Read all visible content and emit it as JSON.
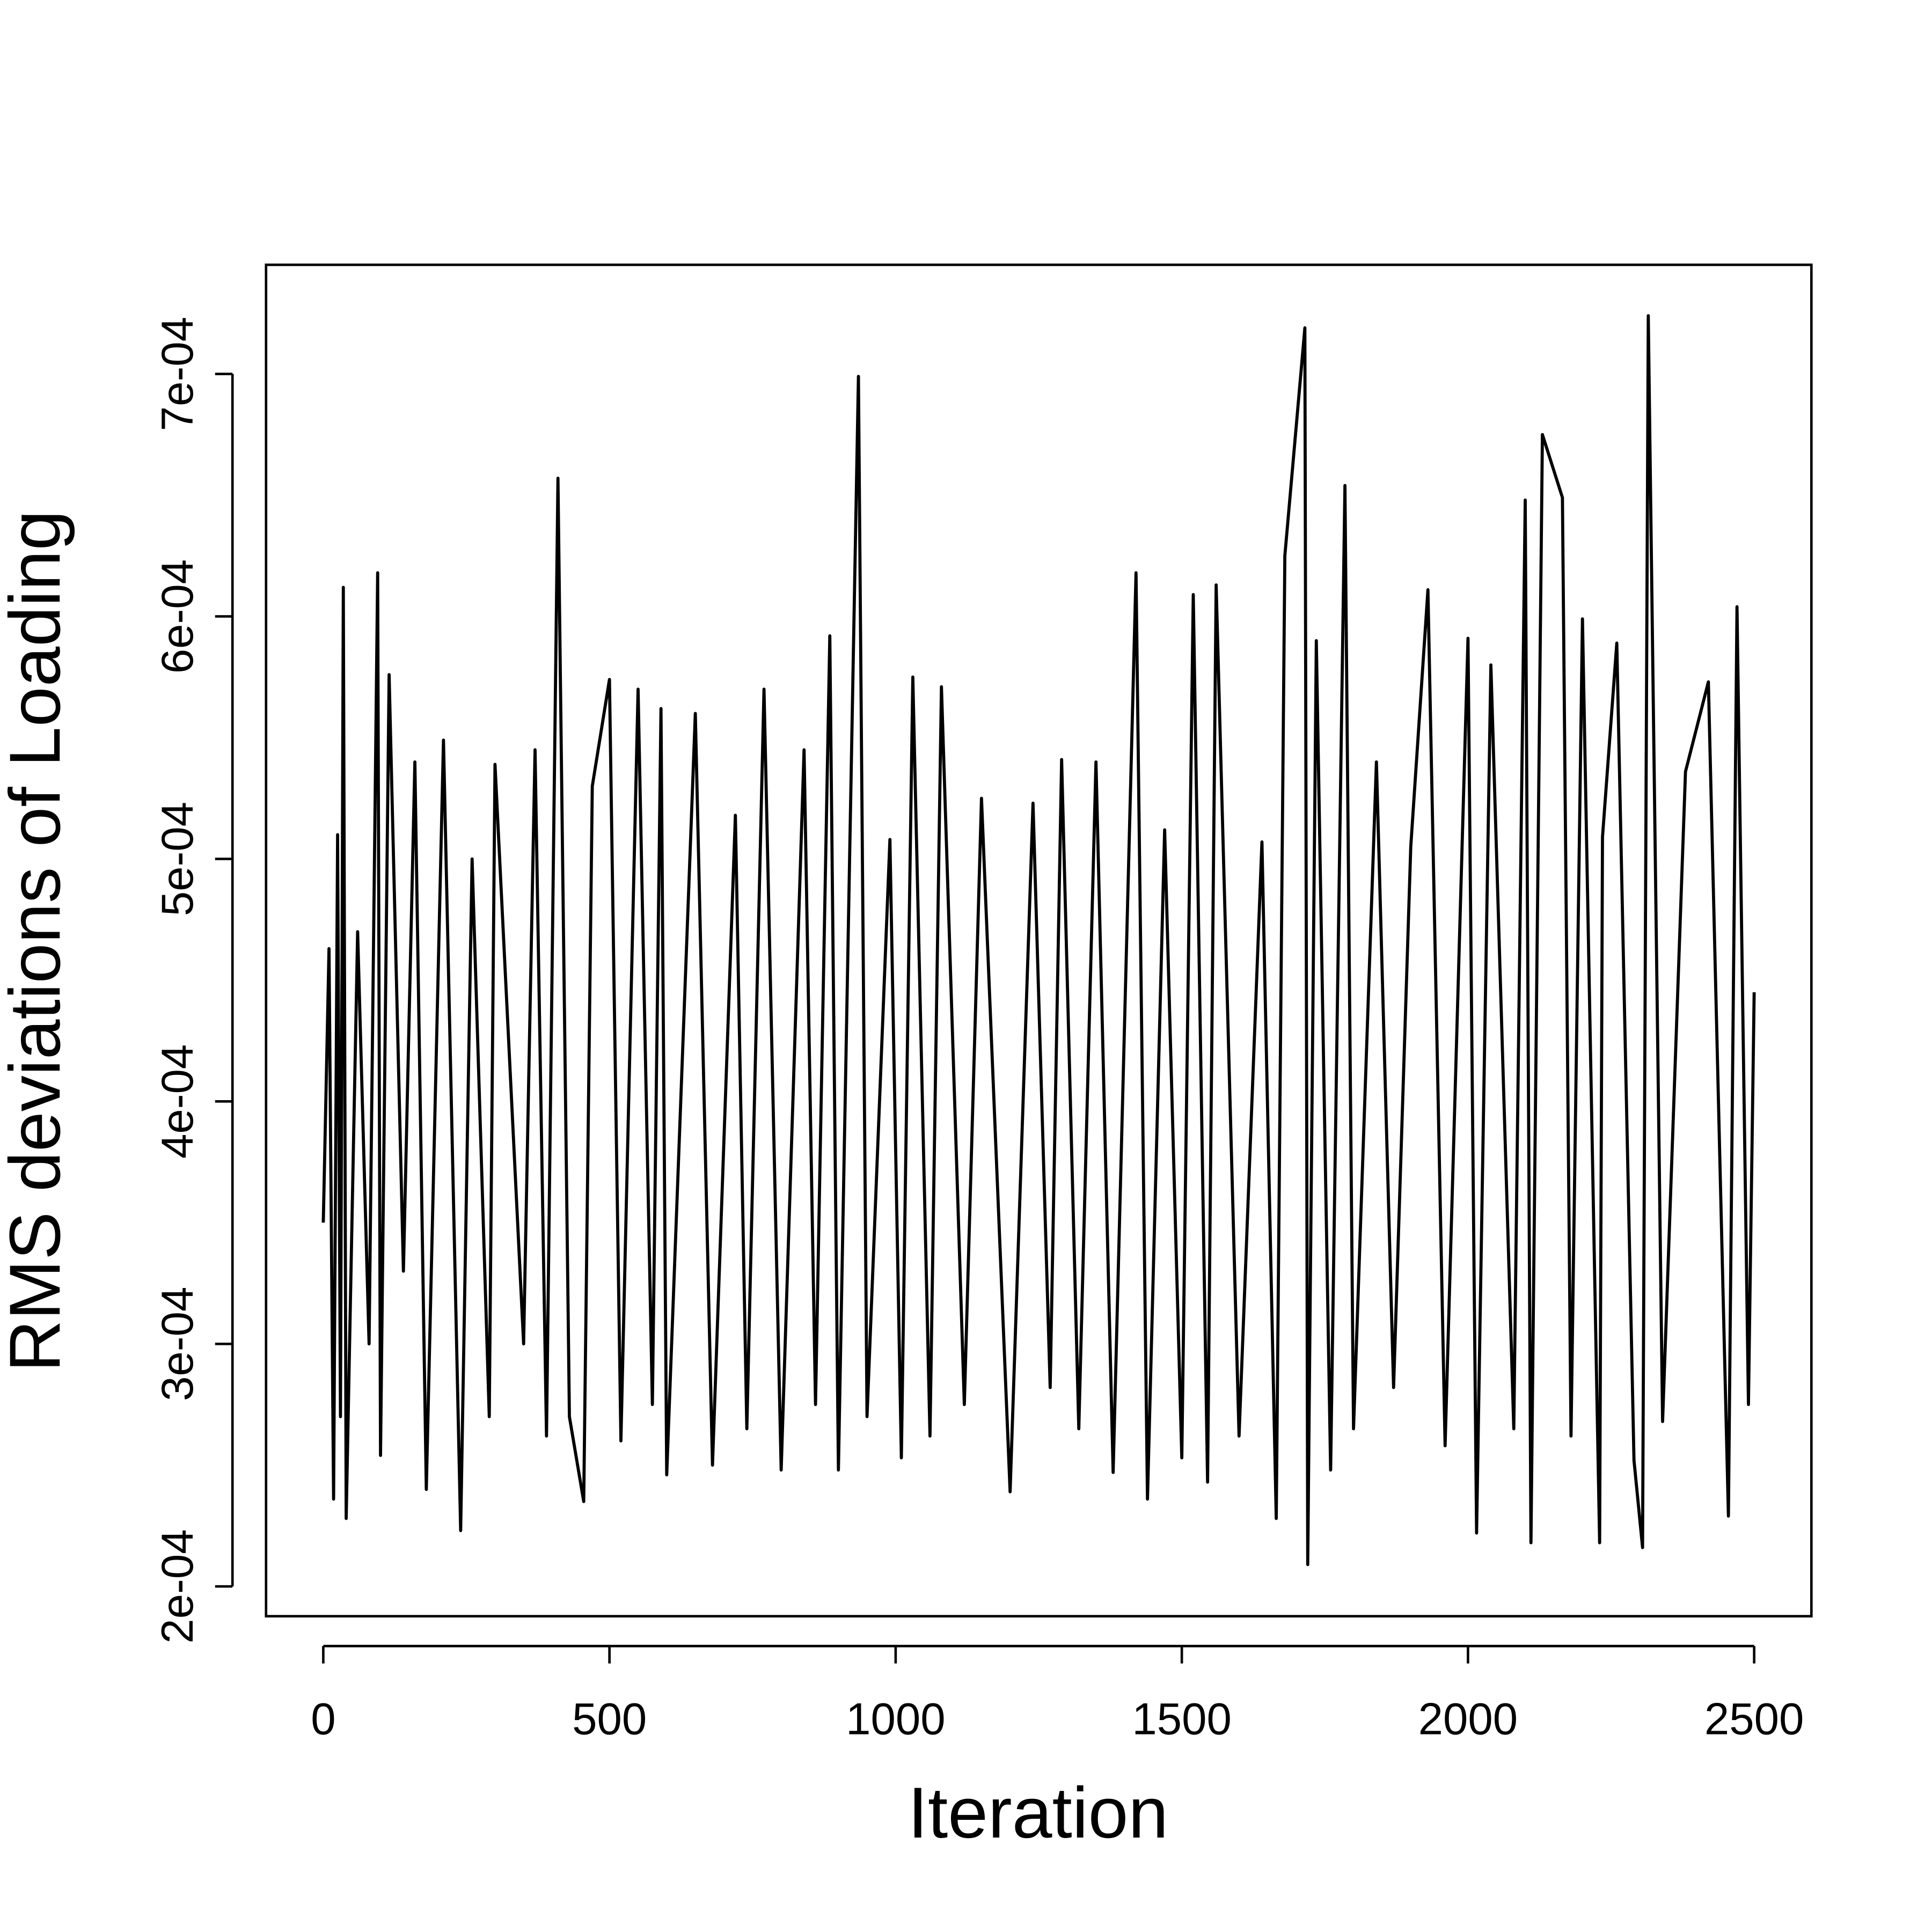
{
  "chart_data": {
    "type": "line",
    "xlabel": "Iteration",
    "ylabel": "RMS deviations of Loading",
    "x": [
      0,
      10,
      18,
      25,
      30,
      35,
      40,
      60,
      80,
      95,
      100,
      115,
      140,
      160,
      180,
      210,
      240,
      260,
      290,
      300,
      350,
      370,
      390,
      410,
      430,
      455,
      470,
      500,
      520,
      550,
      575,
      590,
      600,
      650,
      680,
      720,
      740,
      770,
      800,
      840,
      860,
      885,
      900,
      935,
      950,
      990,
      1010,
      1030,
      1060,
      1080,
      1120,
      1150,
      1200,
      1240,
      1270,
      1290,
      1320,
      1350,
      1380,
      1420,
      1440,
      1470,
      1500,
      1520,
      1545,
      1560,
      1600,
      1640,
      1665,
      1680,
      1715,
      1720,
      1735,
      1760,
      1785,
      1800,
      1840,
      1870,
      1900,
      1930,
      1960,
      2000,
      2015,
      2040,
      2080,
      2100,
      2110,
      2130,
      2165,
      2180,
      2200,
      2230,
      2235,
      2260,
      2290,
      2305,
      2315,
      2340,
      2380,
      2420,
      2455,
      2470,
      2490,
      2500
    ],
    "values": [
      0.00035,
      0.000463,
      0.000236,
      0.00051,
      0.00027,
      0.000612,
      0.000228,
      0.00047,
      0.0003,
      0.000618,
      0.000254,
      0.000576,
      0.00033,
      0.00054,
      0.00024,
      0.000549,
      0.000223,
      0.0005,
      0.00027,
      0.000539,
      0.0003,
      0.000545,
      0.000262,
      0.000657,
      0.00027,
      0.000235,
      0.00053,
      0.000574,
      0.00026,
      0.00057,
      0.000275,
      0.000562,
      0.000246,
      0.00056,
      0.00025,
      0.000518,
      0.000265,
      0.00057,
      0.000248,
      0.000545,
      0.000275,
      0.000592,
      0.000248,
      0.000699,
      0.00027,
      0.000508,
      0.000253,
      0.000575,
      0.000262,
      0.000571,
      0.000275,
      0.000525,
      0.000239,
      0.000523,
      0.000282,
      0.000541,
      0.000265,
      0.00054,
      0.000247,
      0.000618,
      0.000236,
      0.000512,
      0.000253,
      0.000609,
      0.000243,
      0.000613,
      0.000262,
      0.000507,
      0.000228,
      0.000625,
      0.000719,
      0.000209,
      0.00059,
      0.000248,
      0.000654,
      0.000265,
      0.00054,
      0.000282,
      0.000505,
      0.000611,
      0.000258,
      0.000591,
      0.000222,
      0.00058,
      0.000265,
      0.000648,
      0.000218,
      0.000675,
      0.000649,
      0.000262,
      0.000599,
      0.000218,
      0.000509,
      0.000589,
      0.000252,
      0.000216,
      0.000724,
      0.000268,
      0.000536,
      0.000573,
      0.000229,
      0.000604,
      0.000275,
      0.000445
    ],
    "color": "#000000",
    "xlim": [
      -100,
      2600
    ],
    "xticks": [
      0,
      500,
      1000,
      1500,
      2000,
      2500
    ],
    "ylim": [
      0.0001877,
      0.000745
    ],
    "yticks": [
      {
        "value": 0.0002,
        "label": "2e-04"
      },
      {
        "value": 0.0003,
        "label": "3e-04"
      },
      {
        "value": 0.0004,
        "label": "4e-04"
      },
      {
        "value": 0.0005,
        "label": "5e-04"
      },
      {
        "value": 0.0006,
        "label": "6e-04"
      },
      {
        "value": 0.0007,
        "label": "7e-04"
      }
    ]
  }
}
